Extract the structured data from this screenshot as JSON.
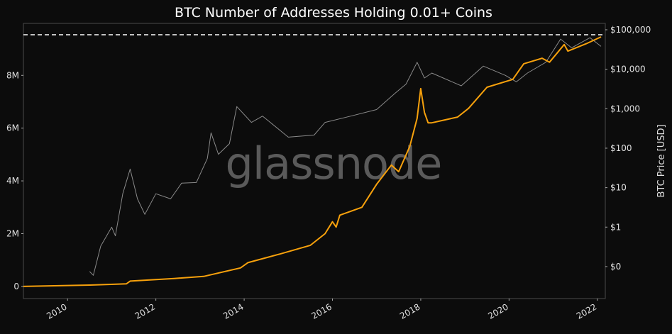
{
  "chart_data": {
    "type": "line",
    "title": "BTC Number of Addresses Holding 0.01+ Coins",
    "xlabel": "",
    "ylabel_left": "",
    "ylabel_right": "BTC Price [USD]",
    "x_range": [
      "2009-01",
      "2022-03"
    ],
    "x_ticks": [
      "2010",
      "2012",
      "2014",
      "2016",
      "2018",
      "2020",
      "2022"
    ],
    "y_left": {
      "ticks": [
        0,
        2000000,
        4000000,
        6000000,
        8000000
      ],
      "tick_labels": [
        "0",
        "2M",
        "4M",
        "6M",
        "8M"
      ],
      "range": [
        -460000,
        9970000
      ],
      "scale": "linear"
    },
    "y_right": {
      "ticks": [
        0.1,
        1,
        10,
        100,
        1000,
        10000,
        100000
      ],
      "tick_labels": [
        "$0",
        "$1",
        "$10",
        "$100",
        "$1,000",
        "$10,000",
        "$100,000"
      ],
      "range": [
        0.0155,
        145000
      ],
      "scale": "log"
    },
    "grid": false,
    "reference_line": {
      "axis": "left",
      "value": 9540000,
      "style": "dashed",
      "color": "#ffffff"
    },
    "watermark": "glassnode",
    "series": [
      {
        "axis": "left",
        "color": "#f7a10c",
        "points": [
          [
            "2009-01",
            0
          ],
          [
            "2010-07",
            50000
          ],
          [
            "2011-05",
            100000
          ],
          [
            "2011-06",
            200000
          ],
          [
            "2012-06",
            300000
          ],
          [
            "2013-02",
            380000
          ],
          [
            "2013-12",
            700000
          ],
          [
            "2014-02",
            900000
          ],
          [
            "2014-11",
            1240000
          ],
          [
            "2015-07",
            1560000
          ],
          [
            "2015-11",
            2000000
          ],
          [
            "2016-01",
            2450000
          ],
          [
            "2016-02",
            2250000
          ],
          [
            "2016-03",
            2700000
          ],
          [
            "2016-09",
            3000000
          ],
          [
            "2017-01",
            3870000
          ],
          [
            "2017-05",
            4600000
          ],
          [
            "2017-07",
            4350000
          ],
          [
            "2017-10",
            5300000
          ],
          [
            "2017-12",
            6370000
          ],
          [
            "2018-01",
            7500000
          ],
          [
            "2018-02",
            6600000
          ],
          [
            "2018-03",
            6200000
          ],
          [
            "2018-04",
            6200000
          ],
          [
            "2018-11",
            6420000
          ],
          [
            "2019-02",
            6750000
          ],
          [
            "2019-07",
            7550000
          ],
          [
            "2020-02",
            7850000
          ],
          [
            "2020-05",
            8440000
          ],
          [
            "2020-10",
            8650000
          ],
          [
            "2020-12",
            8500000
          ],
          [
            "2021-04",
            9170000
          ],
          [
            "2021-05",
            8920000
          ],
          [
            "2021-10",
            9200000
          ],
          [
            "2022-02",
            9460000
          ]
        ]
      },
      {
        "axis": "right",
        "color": "#8a8a8a",
        "points": [
          [
            "2010-07",
            0.075
          ],
          [
            "2010-08",
            0.06
          ],
          [
            "2010-10",
            0.33
          ],
          [
            "2011-01",
            1
          ],
          [
            "2011-02",
            0.6
          ],
          [
            "2011-04",
            7
          ],
          [
            "2011-06",
            29.6
          ],
          [
            "2011-08",
            5.2
          ],
          [
            "2011-10",
            2.1
          ],
          [
            "2012-01",
            7
          ],
          [
            "2012-05",
            5.2
          ],
          [
            "2012-08",
            13
          ],
          [
            "2012-12",
            13.5
          ],
          [
            "2013-03",
            55
          ],
          [
            "2013-04",
            245
          ],
          [
            "2013-06",
            70
          ],
          [
            "2013-09",
            130
          ],
          [
            "2013-11",
            1130
          ],
          [
            "2014-03",
            450
          ],
          [
            "2014-06",
            650
          ],
          [
            "2015-01",
            190
          ],
          [
            "2015-08",
            215
          ],
          [
            "2015-11",
            450
          ],
          [
            "2016-06",
            650
          ],
          [
            "2017-01",
            950
          ],
          [
            "2017-06",
            2450
          ],
          [
            "2017-09",
            4200
          ],
          [
            "2017-12",
            15000
          ],
          [
            "2018-02",
            6000
          ],
          [
            "2018-04",
            8000
          ],
          [
            "2018-12",
            3800
          ],
          [
            "2019-06",
            12000
          ],
          [
            "2019-12",
            7000
          ],
          [
            "2020-03",
            4800
          ],
          [
            "2020-06",
            8000
          ],
          [
            "2020-11",
            15000
          ],
          [
            "2021-03",
            58000
          ],
          [
            "2021-06",
            35000
          ],
          [
            "2021-11",
            63000
          ],
          [
            "2022-02",
            38000
          ]
        ]
      }
    ]
  }
}
